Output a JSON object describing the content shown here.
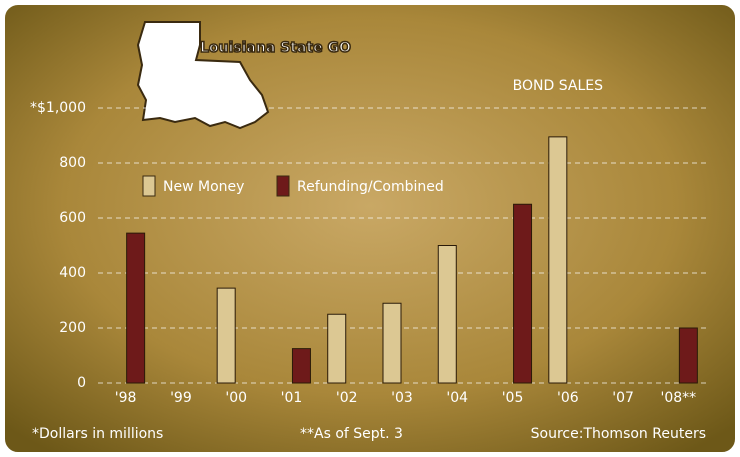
{
  "chart_data": {
    "type": "bar",
    "title": "Louisiana State GO",
    "subtitle": "BOND SALES",
    "categories": [
      "'98",
      "'99",
      "'00",
      "'01",
      "'02",
      "'03",
      "'04",
      "'05",
      "'06",
      "'07",
      "'08**"
    ],
    "series": [
      {
        "name": "New Money",
        "color": "#dcc893",
        "values": [
          null,
          null,
          345,
          null,
          250,
          290,
          500,
          null,
          895,
          null,
          null
        ]
      },
      {
        "name": "Refunding/Combined",
        "color": "#6e1a1a",
        "values": [
          545,
          null,
          null,
          125,
          null,
          null,
          null,
          650,
          null,
          null,
          200
        ]
      }
    ],
    "ylim": [
      0,
      1000
    ],
    "yticks": [
      0,
      200,
      400,
      600,
      800,
      {
        "value": 1000,
        "label": "*$1,000"
      }
    ],
    "grid": true,
    "notes": [
      "*Dollars in millions",
      "**As of Sept. 3",
      "Source:Thomson Reuters"
    ]
  }
}
